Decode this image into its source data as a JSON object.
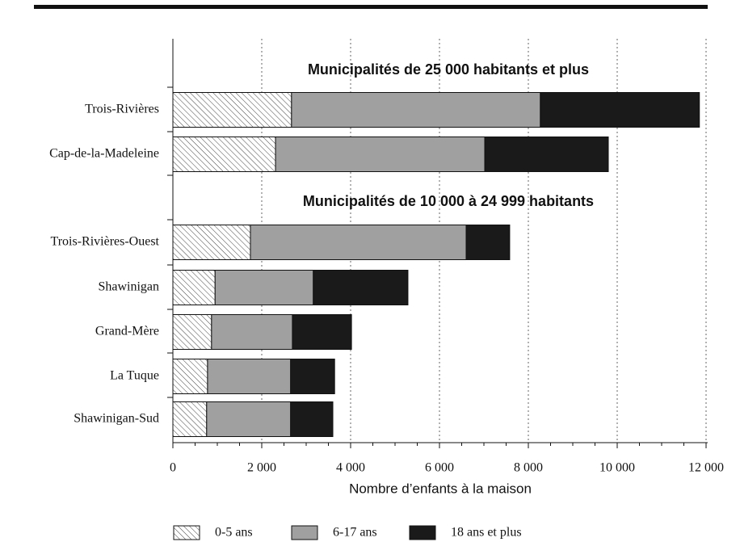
{
  "chart_data": {
    "type": "stacked-barh",
    "x_label": "Nombre d’enfants à la maison",
    "annotations": [
      "Municipalités de 25 000 habitants et plus",
      "Municipalités de 10 000 à 24 999 habitants"
    ],
    "categories": [
      "Trois-Rivières",
      "Cap-de-la-Madeleine",
      "Trois-Rivières-Ouest",
      "Shawinigan",
      "Grand-Mère",
      "La Tuque",
      "Shawinigan-Sud"
    ],
    "series": [
      {
        "name": "0-5 ans",
        "color": "#ffffff",
        "hatch": true,
        "values": [
          2670,
          2310,
          1745,
          950,
          870,
          780,
          760
        ]
      },
      {
        "name": "6-17 ans",
        "color": "#a0a0a0",
        "hatch": false,
        "values": [
          5600,
          4710,
          4855,
          2210,
          1820,
          1870,
          1890
        ]
      },
      {
        "name": "18 ans et plus",
        "color": "#1a1a1a",
        "hatch": false,
        "values": [
          3580,
          2780,
          980,
          2130,
          1330,
          990,
          950
        ]
      }
    ],
    "xlim": [
      0,
      12000
    ],
    "xticks": [
      0,
      {
        "value": 2000,
        "label": "2 000"
      },
      {
        "value": 4000,
        "label": "4 000"
      },
      {
        "value": 6000,
        "label": "6 000"
      },
      {
        "value": 8000,
        "label": "8 000"
      },
      {
        "value": 10000,
        "label": "10 000"
      },
      {
        "value": 12000,
        "label": "12 000"
      }
    ],
    "grid": true
  }
}
